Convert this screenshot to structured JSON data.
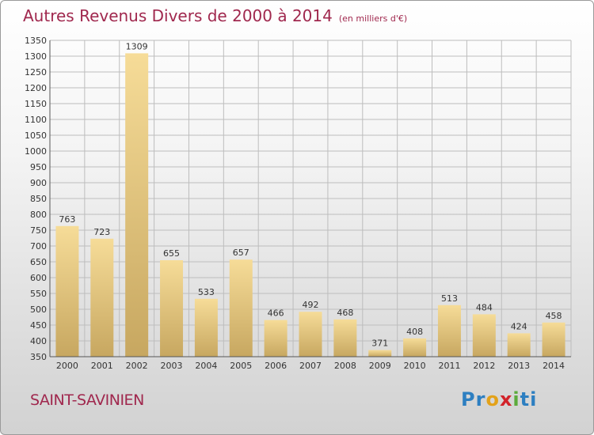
{
  "chart_data": {
    "type": "bar",
    "title": "Autres Revenus Divers de 2000 à 2014",
    "subtitle": "(en milliers d'€)",
    "categories": [
      "2000",
      "2001",
      "2002",
      "2003",
      "2004",
      "2005",
      "2006",
      "2007",
      "2008",
      "2009",
      "2010",
      "2011",
      "2012",
      "2013",
      "2014"
    ],
    "values": [
      763,
      723,
      1309,
      655,
      533,
      657,
      466,
      492,
      468,
      371,
      408,
      513,
      484,
      424,
      458
    ],
    "ylim": [
      350,
      1350
    ],
    "ytick_step": 50,
    "grid": true,
    "bar_color": "#e8c878",
    "xlabel": "",
    "ylabel": ""
  },
  "commune": "SAINT-SAVINIEN",
  "logo": {
    "text": "Proxiti",
    "parts": [
      "Pr",
      "o",
      "x",
      "i",
      "ti"
    ]
  },
  "colors": {
    "title": "#a0284e",
    "grid": "#bdbdbd"
  }
}
